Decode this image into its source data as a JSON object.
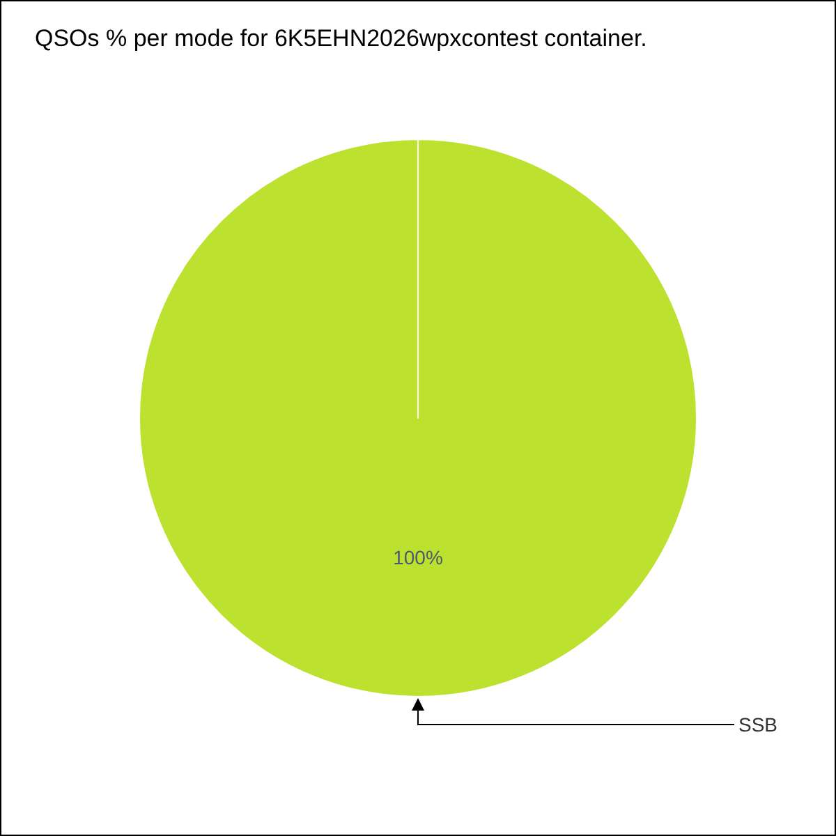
{
  "chart_data": {
    "type": "pie",
    "title": "QSOs % per mode for 6K5EHN2026wpxcontest container.",
    "categories": [
      "SSB"
    ],
    "values": [
      100
    ],
    "colors": [
      "#bde12f"
    ],
    "value_labels": [
      "100%"
    ]
  }
}
